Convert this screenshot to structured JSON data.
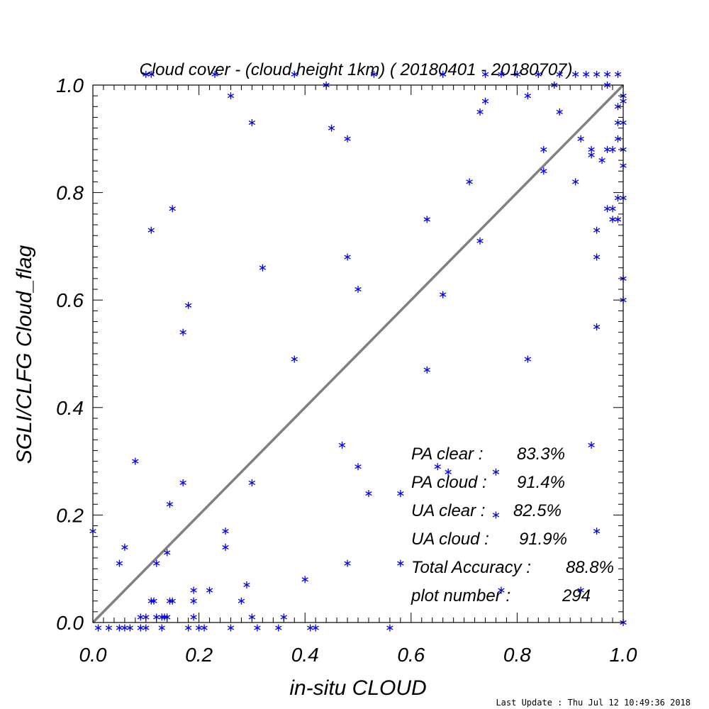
{
  "chart_data": {
    "type": "scatter",
    "title": "Cloud cover - (cloud height 1km) ( 20180401 - 20180707)",
    "xlabel": "in-situ CLOUD",
    "ylabel": "SGLI/CLFG Cloud_flag",
    "xlim": [
      0.0,
      1.0
    ],
    "ylim": [
      0.0,
      1.0
    ],
    "xticks": [
      "0.0",
      "0.2",
      "0.4",
      "0.6",
      "0.8",
      "1.0"
    ],
    "yticks": [
      "0.0",
      "0.2",
      "0.4",
      "0.6",
      "0.8",
      "1.0"
    ],
    "grid": false,
    "reference_line": "y = x",
    "colors": {
      "points": "#0000ee",
      "reference_line": "#808080",
      "axes": "#000000"
    },
    "points": [
      [
        0.0,
        0.17
      ],
      [
        0.05,
        0.11
      ],
      [
        0.06,
        0.14
      ],
      [
        0.08,
        0.3
      ],
      [
        0.09,
        0.01
      ],
      [
        0.1,
        0.01
      ],
      [
        0.11,
        0.04
      ],
      [
        0.115,
        0.04
      ],
      [
        0.12,
        0.11
      ],
      [
        0.12,
        0.01
      ],
      [
        0.13,
        0.01
      ],
      [
        0.135,
        0.01
      ],
      [
        0.14,
        0.01
      ],
      [
        0.14,
        0.13
      ],
      [
        0.145,
        0.04
      ],
      [
        0.145,
        0.22
      ],
      [
        0.15,
        0.04
      ],
      [
        0.17,
        0.26
      ],
      [
        0.19,
        0.04
      ],
      [
        0.19,
        0.01
      ],
      [
        0.19,
        0.06
      ],
      [
        0.22,
        0.06
      ],
      [
        0.25,
        0.17
      ],
      [
        0.25,
        0.14
      ],
      [
        0.28,
        0.04
      ],
      [
        0.29,
        0.07
      ],
      [
        0.3,
        0.01
      ],
      [
        0.3,
        0.26
      ],
      [
        0.36,
        0.01
      ],
      [
        0.4,
        0.08
      ],
      [
        0.47,
        0.33
      ],
      [
        0.48,
        0.11
      ],
      [
        0.5,
        0.29
      ],
      [
        0.52,
        0.24
      ],
      [
        0.58,
        0.24
      ],
      [
        0.58,
        0.11
      ],
      [
        0.65,
        0.29
      ],
      [
        0.67,
        0.28
      ],
      [
        0.76,
        0.28
      ],
      [
        0.76,
        0.2
      ],
      [
        0.77,
        0.06
      ],
      [
        0.92,
        0.06
      ],
      [
        0.94,
        0.33
      ],
      [
        0.95,
        0.17
      ],
      [
        0.11,
        0.73
      ],
      [
        0.15,
        0.77
      ],
      [
        0.17,
        0.54
      ],
      [
        0.18,
        0.59
      ],
      [
        0.32,
        0.66
      ],
      [
        0.38,
        0.49
      ],
      [
        0.48,
        0.68
      ],
      [
        0.5,
        0.62
      ],
      [
        0.63,
        0.47
      ],
      [
        0.63,
        0.75
      ],
      [
        0.66,
        0.61
      ],
      [
        0.71,
        0.82
      ],
      [
        0.73,
        0.71
      ],
      [
        0.82,
        0.49
      ],
      [
        0.91,
        0.82
      ],
      [
        0.95,
        0.68
      ],
      [
        0.95,
        0.55
      ],
      [
        0.95,
        0.73
      ],
      [
        0.26,
        0.98
      ],
      [
        0.3,
        0.93
      ],
      [
        0.44,
        1.0
      ],
      [
        0.45,
        0.92
      ],
      [
        0.48,
        0.9
      ],
      [
        0.73,
        0.95
      ],
      [
        0.74,
        0.97
      ],
      [
        0.82,
        0.98
      ],
      [
        0.85,
        0.84
      ],
      [
        0.85,
        0.88
      ],
      [
        0.87,
        1.0
      ],
      [
        0.88,
        0.95
      ],
      [
        0.92,
        0.9
      ],
      [
        0.94,
        0.87
      ],
      [
        0.94,
        0.88
      ],
      [
        0.96,
        0.86
      ],
      [
        0.97,
        1.0
      ],
      [
        0.97,
        0.88
      ],
      [
        0.97,
        0.77
      ],
      [
        0.98,
        0.75
      ],
      [
        0.98,
        0.88
      ],
      [
        0.98,
        0.77
      ],
      [
        0.99,
        0.9
      ],
      [
        0.99,
        0.93
      ],
      [
        0.99,
        0.96
      ],
      [
        0.99,
        0.79
      ],
      [
        0.99,
        0.75
      ],
      [
        1.0,
        0.98
      ],
      [
        1.0,
        0.97
      ],
      [
        1.0,
        0.93
      ],
      [
        1.0,
        0.88
      ],
      [
        1.0,
        0.85
      ],
      [
        1.0,
        0.79
      ],
      [
        1.0,
        0.64
      ],
      [
        1.0,
        0.6
      ],
      [
        1.0,
        0.0
      ],
      [
        0.1,
        1.02
      ],
      [
        0.11,
        1.02
      ],
      [
        0.23,
        1.02
      ],
      [
        0.38,
        1.02
      ],
      [
        0.53,
        1.02
      ],
      [
        0.66,
        1.02
      ],
      [
        0.74,
        1.02
      ],
      [
        0.77,
        1.02
      ],
      [
        0.8,
        1.02
      ],
      [
        0.84,
        1.02
      ],
      [
        0.88,
        1.02
      ],
      [
        0.91,
        1.02
      ],
      [
        0.93,
        1.02
      ],
      [
        0.95,
        1.02
      ],
      [
        0.97,
        1.02
      ],
      [
        0.99,
        1.02
      ],
      [
        0.01,
        -0.01
      ],
      [
        0.03,
        -0.01
      ],
      [
        0.05,
        -0.01
      ],
      [
        0.06,
        -0.01
      ],
      [
        0.07,
        -0.01
      ],
      [
        0.09,
        -0.01
      ],
      [
        0.1,
        -0.01
      ],
      [
        0.13,
        -0.01
      ],
      [
        0.18,
        -0.01
      ],
      [
        0.2,
        -0.01
      ],
      [
        0.21,
        -0.01
      ],
      [
        0.26,
        -0.01
      ],
      [
        0.31,
        -0.01
      ],
      [
        0.35,
        -0.01
      ],
      [
        0.41,
        -0.01
      ],
      [
        0.42,
        -0.01
      ],
      [
        0.56,
        -0.01
      ]
    ],
    "annotations": [
      {
        "label": "PA clear :",
        "value": "83.3%"
      },
      {
        "label": "PA cloud :",
        "value": "91.4%"
      },
      {
        "label": "UA clear :",
        "value": "82.5%"
      },
      {
        "label": "UA cloud :",
        "value": "91.9%"
      },
      {
        "label": "Total Accuracy :",
        "value": "88.8%"
      },
      {
        "label": "plot number :",
        "value": "294"
      }
    ]
  },
  "footer": {
    "last_update": "Last Update : Thu Jul 12 10:49:36 2018"
  }
}
